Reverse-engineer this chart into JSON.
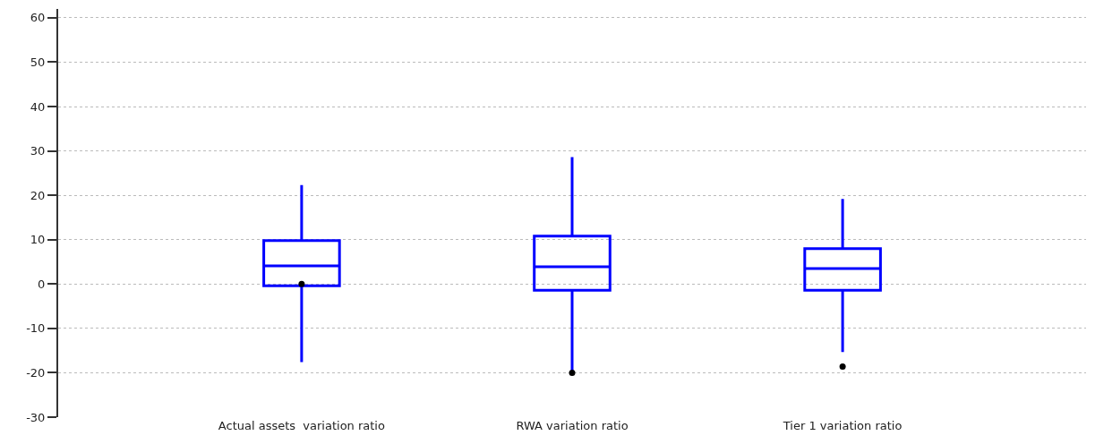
{
  "chart_data": {
    "type": "box",
    "categories": [
      "Actual assets  variation ratio",
      "RWA variation ratio",
      "Tier 1 variation ratio"
    ],
    "series": [
      {
        "color": "#0000ff",
        "boxes": [
          {
            "low": -17.6,
            "q1": -0.4,
            "median": 4.1,
            "q3": 9.8,
            "high": 22.3,
            "outliers": [
              0
            ]
          },
          {
            "low": -19.8,
            "q1": -1.4,
            "median": 3.9,
            "q3": 10.8,
            "high": 28.6,
            "outliers": [
              -20
            ]
          },
          {
            "low": -15.3,
            "q1": -1.4,
            "median": 3.5,
            "q3": 8.0,
            "high": 19.2,
            "outliers": [
              -18.6
            ]
          }
        ]
      }
    ],
    "ylim": [
      -30,
      62
    ],
    "yticks": [
      -30,
      -20,
      -10,
      0,
      10,
      20,
      30,
      40,
      50,
      60
    ],
    "grid": "y"
  }
}
